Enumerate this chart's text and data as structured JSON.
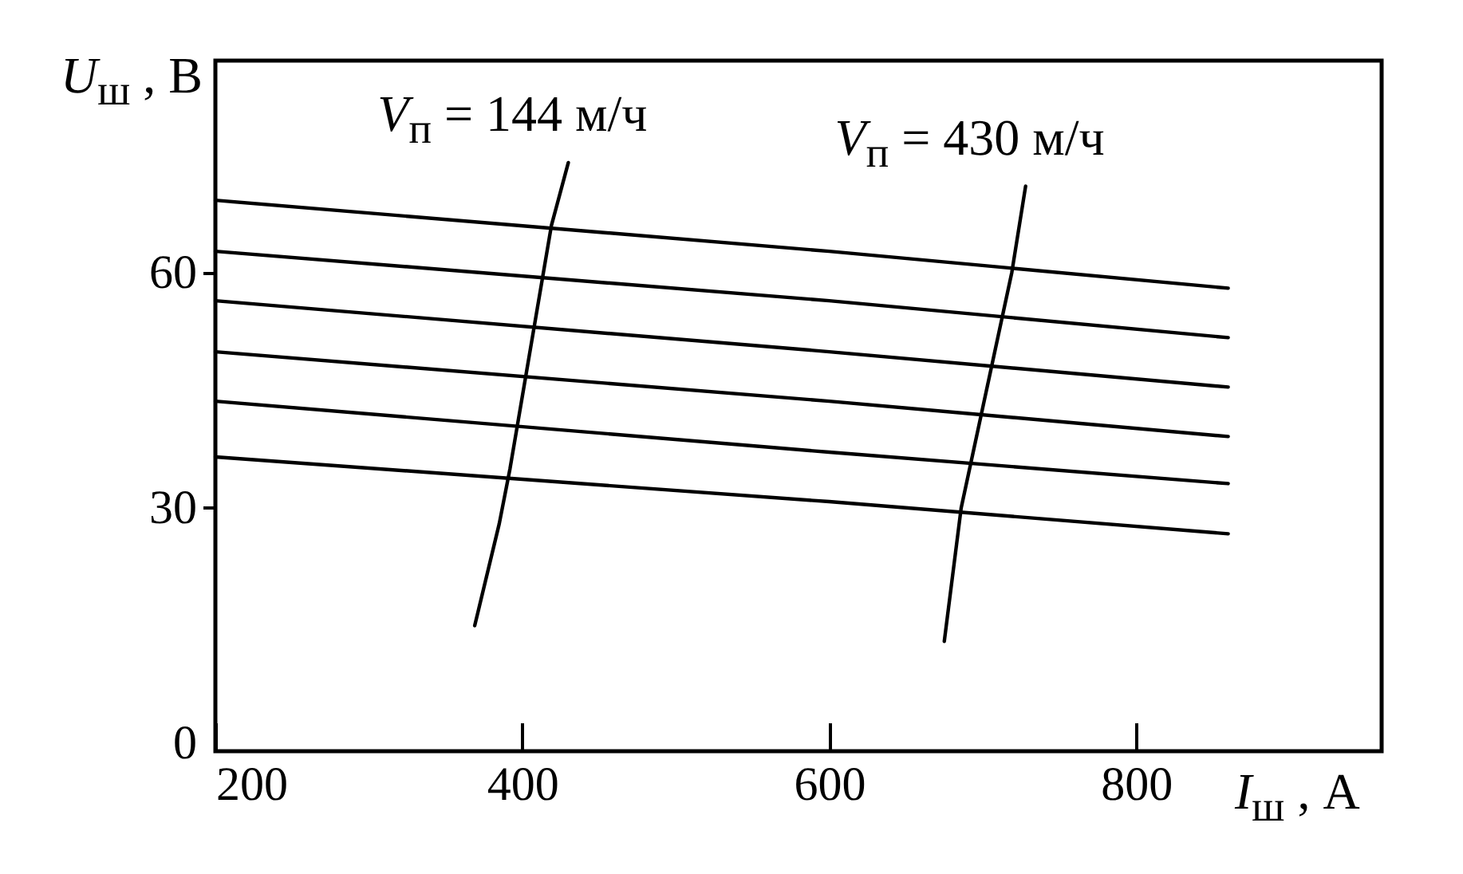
{
  "chart_data": {
    "type": "line",
    "xlabel": "I$_{ш}$ , А",
    "ylabel": "U$_{ш}$ , В",
    "xlim": [
      200,
      960
    ],
    "ylim": [
      -1,
      87
    ],
    "xticks": [
      200,
      400,
      600,
      800
    ],
    "yticks": [
      0,
      30,
      60
    ],
    "grid": false,
    "legend": false,
    "marker": "none",
    "line_style": "solid",
    "series": [
      {
        "color": "#000000",
        "x": [
          200,
          600,
          860
        ],
        "values": [
          69.2,
          62.7,
          58.0
        ]
      },
      {
        "color": "#000000",
        "x": [
          200,
          600,
          860
        ],
        "values": [
          62.7,
          56.4,
          51.7
        ]
      },
      {
        "color": "#000000",
        "x": [
          200,
          600,
          860
        ],
        "values": [
          56.4,
          49.9,
          45.4
        ]
      },
      {
        "color": "#000000",
        "x": [
          200,
          600,
          860
        ],
        "values": [
          49.9,
          43.6,
          39.1
        ]
      },
      {
        "color": "#000000",
        "x": [
          200,
          600,
          860
        ],
        "values": [
          43.6,
          37.1,
          33.1
        ]
      },
      {
        "color": "#000000",
        "x": [
          200,
          600,
          860
        ],
        "values": [
          36.5,
          30.8,
          26.7
        ]
      },
      {
        "name": "V$_{п}$ = 144 м/ч",
        "color": "#000000",
        "x": [
          369,
          385,
          392,
          419,
          430
        ],
        "values": [
          15,
          28,
          35,
          66,
          74
        ]
      },
      {
        "name": "V$_{п}$ = 430 м/ч",
        "color": "#000000",
        "x": [
          675,
          686,
          719,
          728
        ],
        "values": [
          13,
          30,
          60,
          71
        ]
      }
    ]
  }
}
